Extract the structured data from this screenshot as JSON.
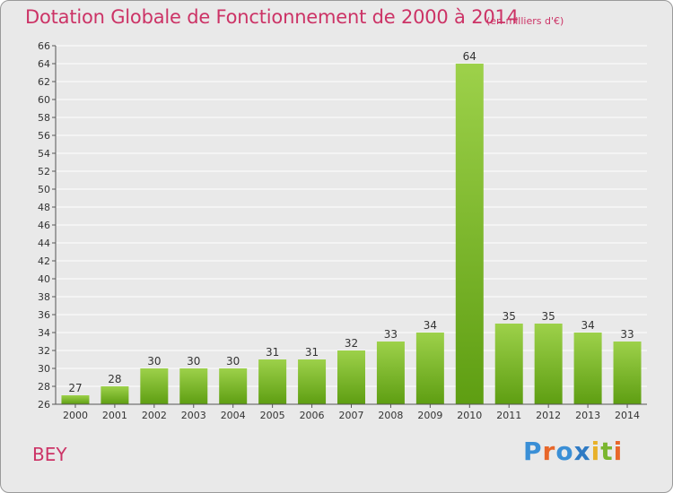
{
  "header": {
    "title": "Dotation Globale de Fonctionnement de 2000 à 2014",
    "unit": "(en milliers d'€)"
  },
  "footer": {
    "commune": "BEY",
    "logo_text": "Proxiti"
  },
  "colors": {
    "title": "#cc3366",
    "bar_light": "#9dd14a",
    "bar_dark": "#5e9e12",
    "grid": "#ffffff",
    "background": "#e9e9e9"
  },
  "chart_data": {
    "type": "bar",
    "title": "Dotation Globale de Fonctionnement de 2000 à 2014",
    "subtitle": "(en milliers d'€)",
    "xlabel": "",
    "ylabel": "",
    "categories": [
      "2000",
      "2001",
      "2002",
      "2003",
      "2004",
      "2005",
      "2006",
      "2007",
      "2008",
      "2009",
      "2010",
      "2011",
      "2012",
      "2013",
      "2014"
    ],
    "values": [
      27,
      28,
      30,
      30,
      30,
      31,
      31,
      32,
      33,
      34,
      64,
      35,
      35,
      34,
      33
    ],
    "ylim": [
      26,
      66
    ],
    "ytick_step": 2,
    "grid": true,
    "legend": "none"
  }
}
